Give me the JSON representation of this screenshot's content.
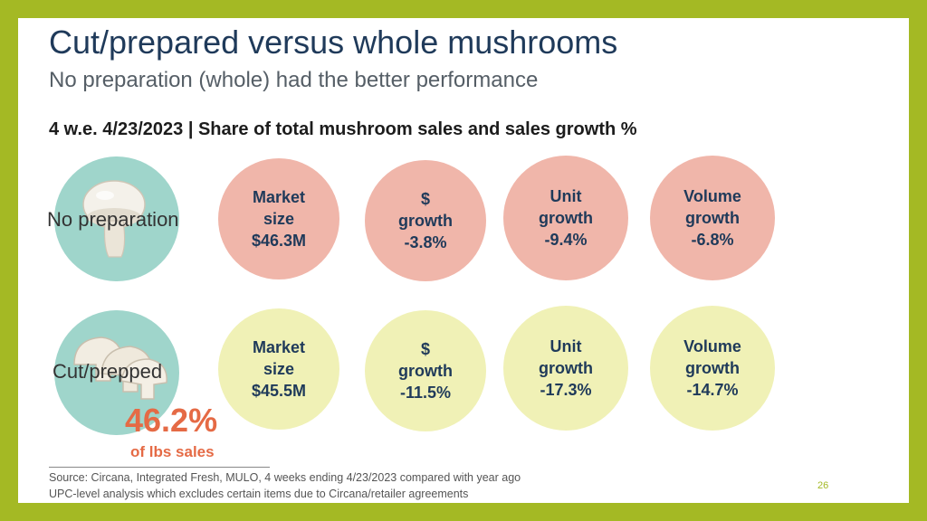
{
  "slide": {
    "title": "Cut/prepared versus whole mushrooms",
    "subtitle": "No preparation (whole) had the better performance",
    "section_heading": "4 w.e. 4/23/2023 | Share of total mushroom sales and sales growth %",
    "rows": [
      {
        "label": "No preparation",
        "color": "#f0b6aa",
        "metrics": [
          {
            "line1": "Market",
            "line2": "size",
            "value": "$46.3M"
          },
          {
            "line1": "$",
            "line2": "growth",
            "value": "-3.8%"
          },
          {
            "line1": "Unit",
            "line2": "growth",
            "value": "-9.4%"
          },
          {
            "line1": "Volume",
            "line2": "growth",
            "value": "-6.8%"
          }
        ]
      },
      {
        "label": "Cut/prepped",
        "color": "#f0f1b6",
        "metrics": [
          {
            "line1": "Market",
            "line2": "size",
            "value": "$45.5M"
          },
          {
            "line1": "$",
            "line2": "growth",
            "value": "-11.5%"
          },
          {
            "line1": "Unit",
            "line2": "growth",
            "value": "-17.3%"
          },
          {
            "line1": "Volume",
            "line2": "growth",
            "value": "-14.7%"
          }
        ]
      }
    ],
    "share": {
      "value": "46.2%",
      "label": "of lbs sales"
    },
    "source_lines": [
      "Source: Circana, Integrated Fresh, MULO, 4 weeks ending 4/23/2023 compared with year ago",
      "UPC-level analysis which excludes certain items due to Circana/retailer agreements"
    ],
    "page_number": "26"
  }
}
